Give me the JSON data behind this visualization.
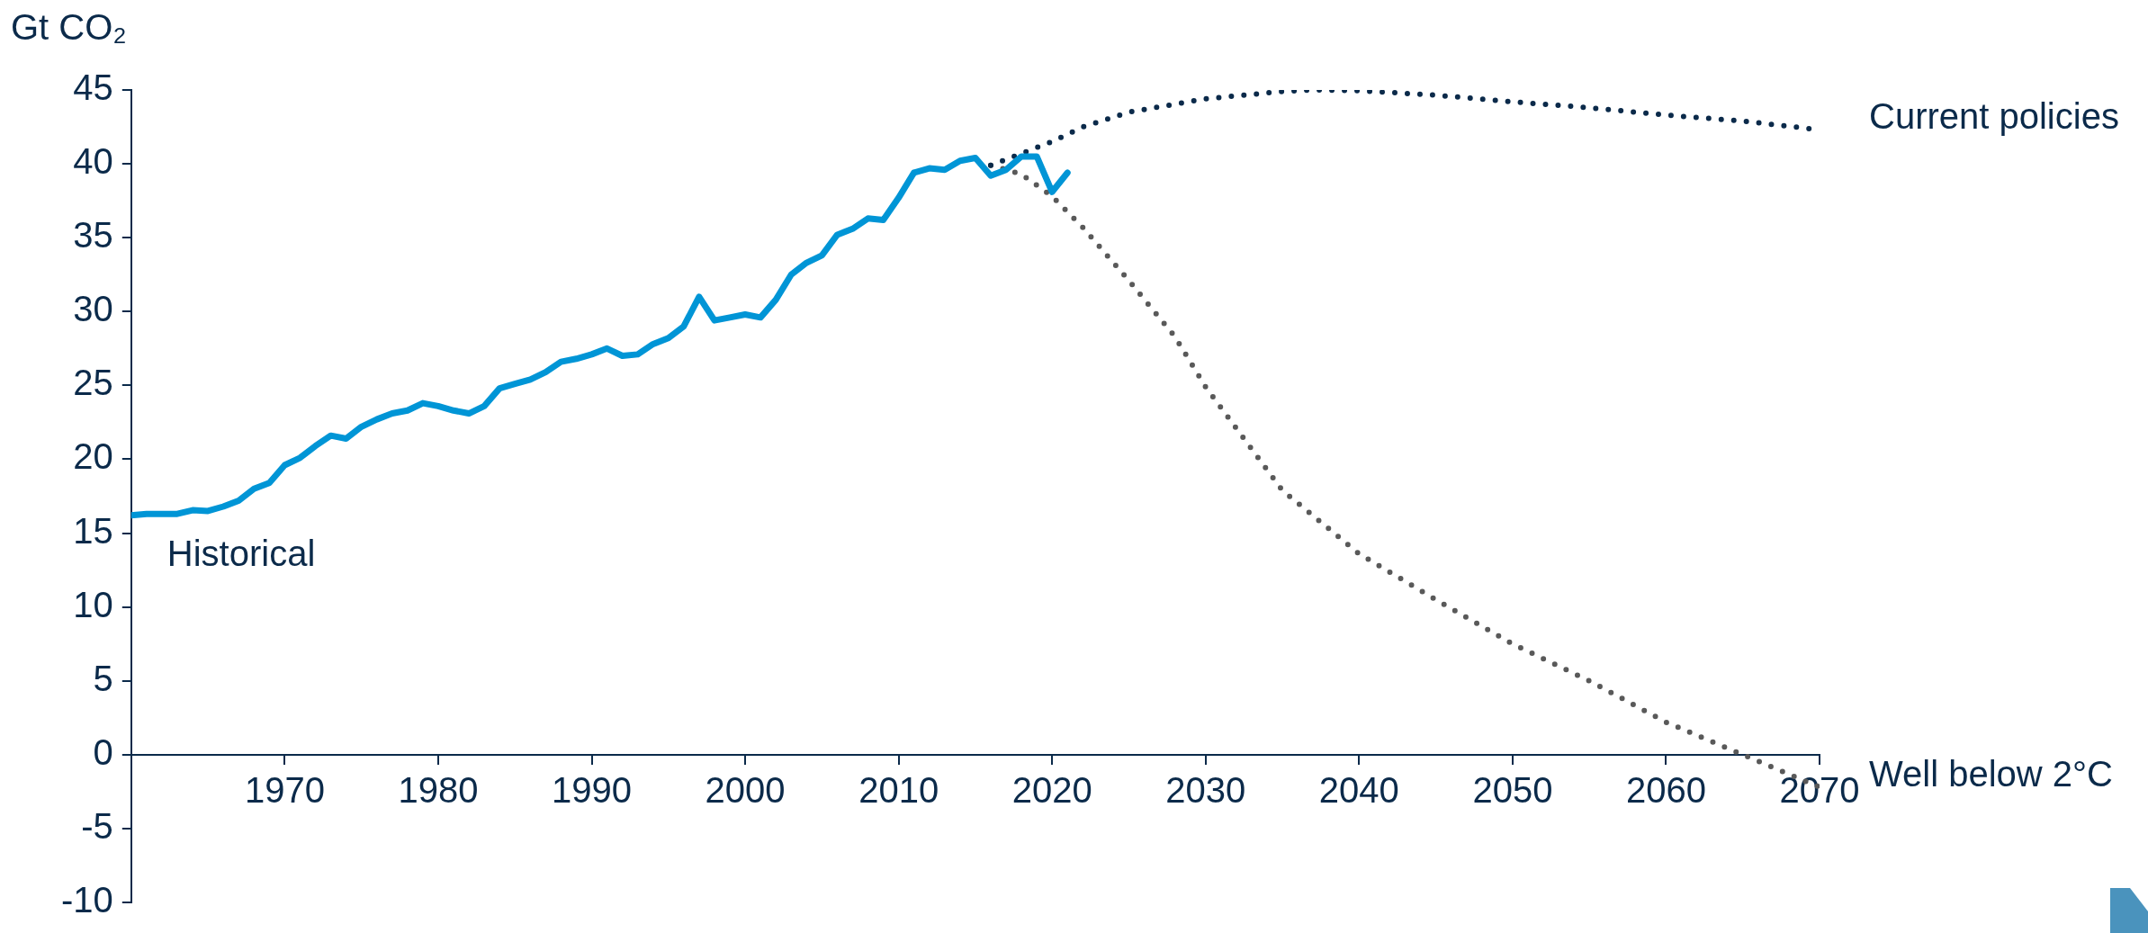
{
  "chart_data": {
    "type": "line",
    "ylabel": "Gt CO₂",
    "xlim": [
      1960,
      2070
    ],
    "xticks": [
      1970,
      1980,
      1990,
      2000,
      2010,
      2020,
      2030,
      2040,
      2050,
      2060,
      2070
    ],
    "ylim": [
      -10,
      45
    ],
    "yticks": [
      -10,
      -5,
      0,
      5,
      10,
      15,
      20,
      25,
      30,
      35,
      40,
      45
    ],
    "grid": false,
    "legend": false,
    "marker": "none",
    "series": [
      {
        "name": "Historical",
        "color": "#0095d6",
        "line_style": "solid",
        "x": [
          1960,
          1961,
          1962,
          1963,
          1964,
          1965,
          1966,
          1967,
          1968,
          1969,
          1970,
          1971,
          1972,
          1973,
          1974,
          1975,
          1976,
          1977,
          1978,
          1979,
          1980,
          1981,
          1982,
          1983,
          1984,
          1985,
          1986,
          1987,
          1988,
          1989,
          1990,
          1991,
          1992,
          1993,
          1994,
          1995,
          1996,
          1997,
          1998,
          1999,
          2000,
          2001,
          2002,
          2003,
          2004,
          2005,
          2006,
          2007,
          2008,
          2009,
          2010,
          2011,
          2012,
          2013,
          2014,
          2015,
          2016,
          2017,
          2018,
          2019,
          2020,
          2021
        ],
        "values": [
          16.2,
          16.3,
          16.3,
          16.3,
          16.55,
          16.5,
          16.8,
          17.2,
          18.0,
          18.4,
          19.6,
          20.1,
          20.9,
          21.6,
          21.4,
          22.2,
          22.7,
          23.1,
          23.3,
          23.8,
          23.6,
          23.3,
          23.1,
          23.6,
          24.8,
          25.1,
          25.4,
          25.9,
          26.6,
          26.8,
          27.1,
          27.5,
          27.0,
          27.1,
          27.8,
          28.2,
          29.0,
          31.0,
          29.4,
          29.6,
          29.8,
          29.6,
          30.8,
          32.5,
          33.3,
          33.8,
          35.2,
          35.6,
          36.3,
          36.2,
          37.7,
          39.4,
          39.7,
          39.6,
          40.2,
          40.4,
          39.2,
          39.6,
          40.5,
          40.5,
          38.1,
          39.4
        ]
      },
      {
        "name": "Current policies",
        "color": "#0b2a4a",
        "line_style": "dotted",
        "x": [
          2016,
          2018,
          2020,
          2022,
          2025,
          2030,
          2035,
          2037,
          2040,
          2045,
          2050,
          2055,
          2060,
          2065,
          2070
        ],
        "values": [
          39.9,
          40.7,
          41.5,
          42.5,
          43.5,
          44.4,
          44.9,
          45.0,
          44.95,
          44.65,
          44.2,
          43.8,
          43.3,
          42.9,
          42.3
        ]
      },
      {
        "name": "Well below 2°C",
        "color": "#595959",
        "line_style": "dotted",
        "x": [
          2016,
          2018,
          2020,
          2022,
          2025,
          2028,
          2030,
          2035,
          2040,
          2045,
          2050,
          2055,
          2060,
          2065,
          2070
        ],
        "values": [
          39.9,
          39.3,
          37.8,
          35.7,
          32.1,
          28.3,
          24.9,
          17.9,
          13.6,
          10.5,
          7.5,
          5.0,
          2.2,
          0,
          -2.2
        ]
      }
    ]
  }
}
